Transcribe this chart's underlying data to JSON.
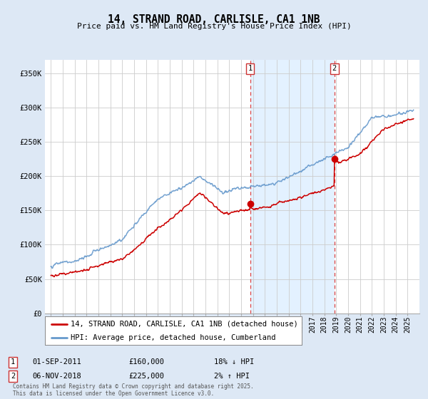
{
  "title": "14, STRAND ROAD, CARLISLE, CA1 1NB",
  "subtitle": "Price paid vs. HM Land Registry's House Price Index (HPI)",
  "background_color": "#dde8f5",
  "plot_bg_color": "#ffffff",
  "yticks": [
    0,
    50000,
    100000,
    150000,
    200000,
    250000,
    300000,
    350000
  ],
  "ytick_labels": [
    "£0",
    "£50K",
    "£100K",
    "£150K",
    "£200K",
    "£250K",
    "£300K",
    "£350K"
  ],
  "xmin": 1994.5,
  "xmax": 2026.0,
  "ymin": 0,
  "ymax": 370000,
  "legend1_label": "14, STRAND ROAD, CARLISLE, CA1 1NB (detached house)",
  "legend2_label": "HPI: Average price, detached house, Cumberland",
  "red_color": "#cc0000",
  "blue_color": "#6699cc",
  "shade_color": "#ddeeff",
  "grid_color": "#cccccc",
  "sale1_x": 2011.75,
  "sale1_y": 160000,
  "sale2_x": 2018.85,
  "sale2_y": 225000,
  "hpi_shade_start": 2011.75,
  "hpi_shade_end": 2018.85,
  "footnote": "Contains HM Land Registry data © Crown copyright and database right 2025.\nThis data is licensed under the Open Government Licence v3.0."
}
